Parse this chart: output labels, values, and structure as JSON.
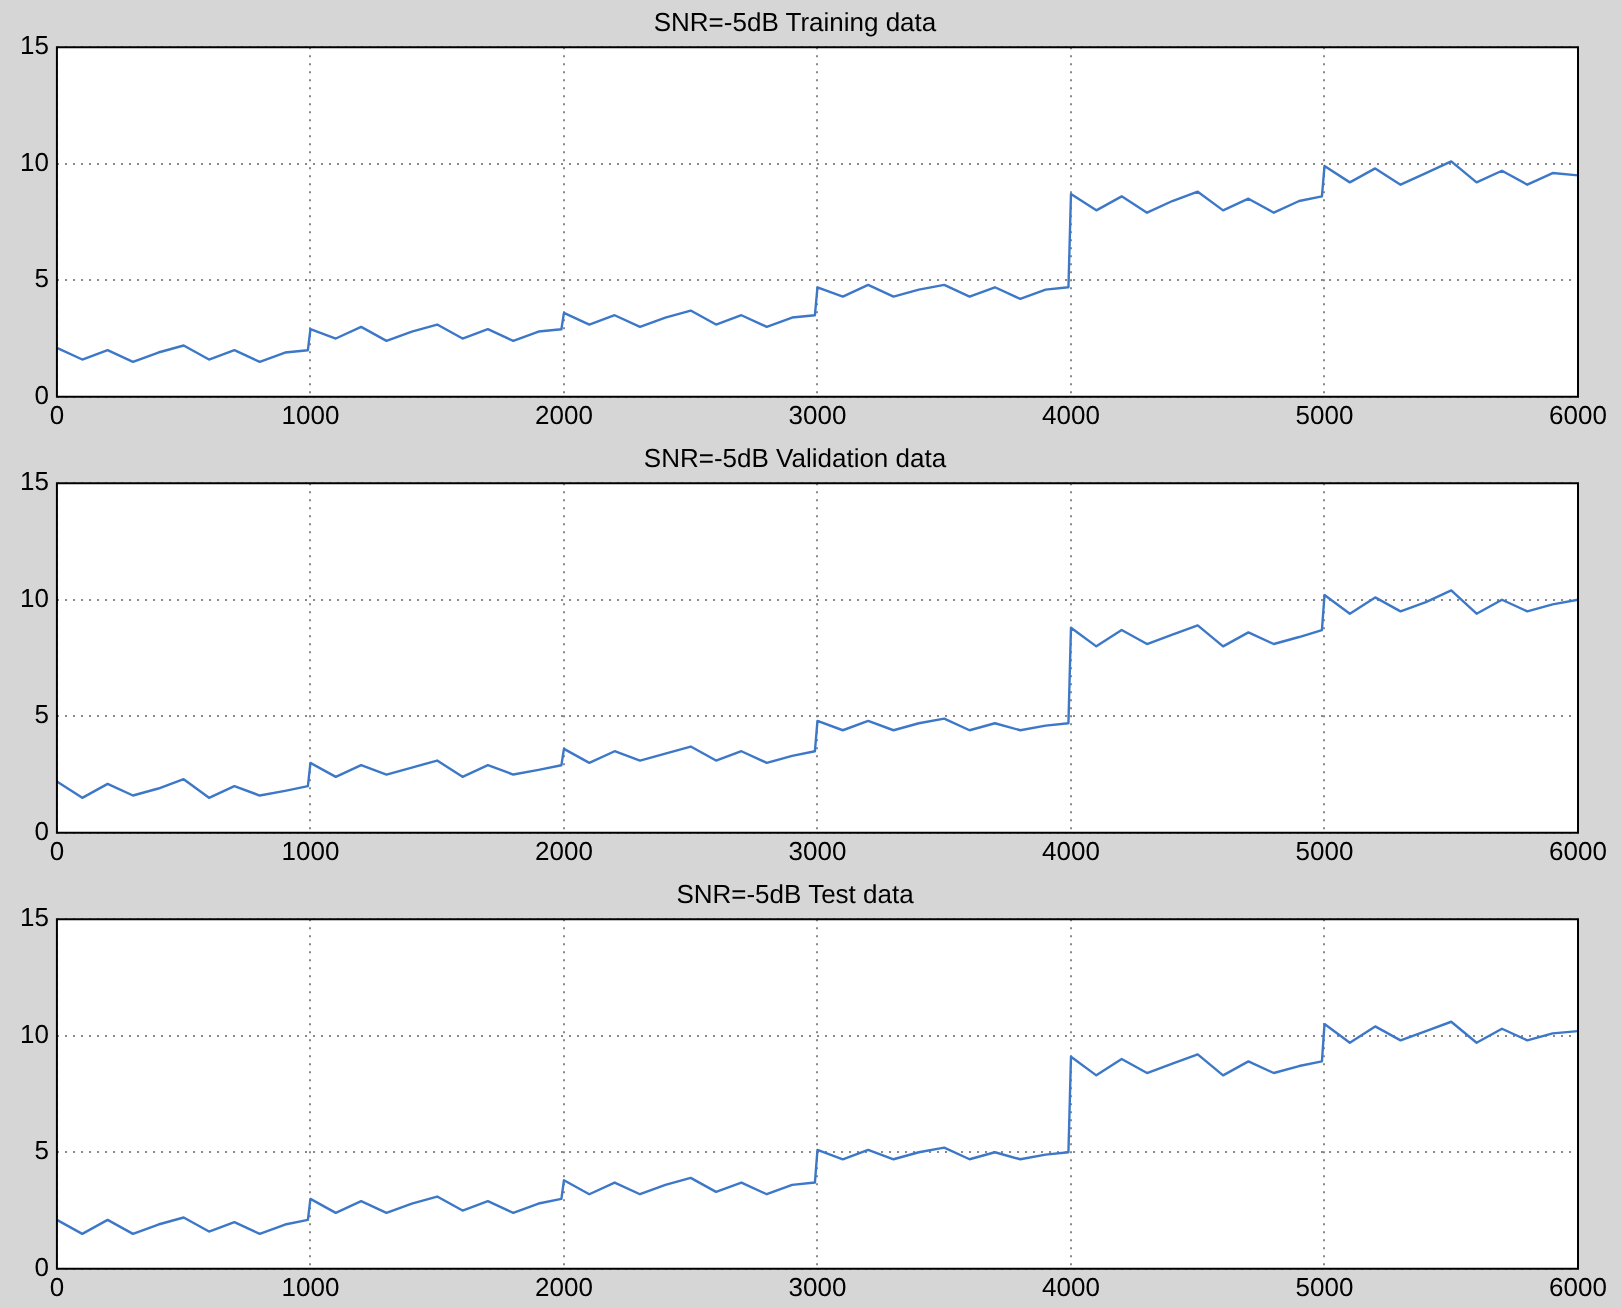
{
  "chart_data": [
    {
      "type": "line",
      "title": "SNR=-5dB Training data",
      "xlim": [
        0,
        6000
      ],
      "xticks": [
        0,
        1000,
        2000,
        3000,
        4000,
        5000,
        6000
      ],
      "ylim": [
        0,
        15
      ],
      "yticks": [
        0,
        5,
        10,
        15
      ],
      "grid": true,
      "x": [
        0,
        100,
        200,
        300,
        400,
        500,
        600,
        700,
        800,
        900,
        990,
        1000,
        1100,
        1200,
        1300,
        1400,
        1500,
        1600,
        1700,
        1800,
        1900,
        1990,
        2000,
        2100,
        2200,
        2300,
        2400,
        2500,
        2600,
        2700,
        2800,
        2900,
        2990,
        3000,
        3100,
        3200,
        3300,
        3400,
        3500,
        3600,
        3700,
        3800,
        3900,
        3990,
        4000,
        4100,
        4200,
        4300,
        4400,
        4500,
        4600,
        4700,
        4800,
        4900,
        4990,
        5000,
        5100,
        5200,
        5300,
        5400,
        5500,
        5600,
        5700,
        5800,
        5900,
        6000
      ],
      "series": [
        {
          "color": "#3d78c8",
          "values": [
            2.1,
            1.6,
            2.0,
            1.5,
            1.9,
            2.2,
            1.6,
            2.0,
            1.5,
            1.9,
            2.0,
            2.9,
            2.5,
            3.0,
            2.4,
            2.8,
            3.1,
            2.5,
            2.9,
            2.4,
            2.8,
            2.9,
            3.6,
            3.1,
            3.5,
            3.0,
            3.4,
            3.7,
            3.1,
            3.5,
            3.0,
            3.4,
            3.5,
            4.7,
            4.3,
            4.8,
            4.3,
            4.6,
            4.8,
            4.3,
            4.7,
            4.2,
            4.6,
            4.7,
            8.7,
            8.0,
            8.6,
            7.9,
            8.4,
            8.8,
            8.0,
            8.5,
            7.9,
            8.4,
            8.6,
            9.9,
            9.2,
            9.8,
            9.1,
            9.6,
            10.1,
            9.2,
            9.7,
            9.1,
            9.6,
            9.5
          ]
        }
      ]
    },
    {
      "type": "line",
      "title": "SNR=-5dB Validation data",
      "xlim": [
        0,
        6000
      ],
      "xticks": [
        0,
        1000,
        2000,
        3000,
        4000,
        5000,
        6000
      ],
      "ylim": [
        0,
        15
      ],
      "yticks": [
        0,
        5,
        10,
        15
      ],
      "grid": true,
      "x": [
        0,
        100,
        200,
        300,
        400,
        500,
        600,
        700,
        800,
        900,
        990,
        1000,
        1100,
        1200,
        1300,
        1400,
        1500,
        1600,
        1700,
        1800,
        1900,
        1990,
        2000,
        2100,
        2200,
        2300,
        2400,
        2500,
        2600,
        2700,
        2800,
        2900,
        2990,
        3000,
        3100,
        3200,
        3300,
        3400,
        3500,
        3600,
        3700,
        3800,
        3900,
        3990,
        4000,
        4100,
        4200,
        4300,
        4400,
        4500,
        4600,
        4700,
        4800,
        4900,
        4990,
        5000,
        5100,
        5200,
        5300,
        5400,
        5500,
        5600,
        5700,
        5800,
        5900,
        6000
      ],
      "series": [
        {
          "color": "#3d78c8",
          "values": [
            2.2,
            1.5,
            2.1,
            1.6,
            1.9,
            2.3,
            1.5,
            2.0,
            1.6,
            1.8,
            2.0,
            3.0,
            2.4,
            2.9,
            2.5,
            2.8,
            3.1,
            2.4,
            2.9,
            2.5,
            2.7,
            2.9,
            3.6,
            3.0,
            3.5,
            3.1,
            3.4,
            3.7,
            3.1,
            3.5,
            3.0,
            3.3,
            3.5,
            4.8,
            4.4,
            4.8,
            4.4,
            4.7,
            4.9,
            4.4,
            4.7,
            4.4,
            4.6,
            4.7,
            8.8,
            8.0,
            8.7,
            8.1,
            8.5,
            8.9,
            8.0,
            8.6,
            8.1,
            8.4,
            8.7,
            10.2,
            9.4,
            10.1,
            9.5,
            9.9,
            10.4,
            9.4,
            10.0,
            9.5,
            9.8,
            10.0
          ]
        }
      ]
    },
    {
      "type": "line",
      "title": "SNR=-5dB Test data",
      "xlim": [
        0,
        6000
      ],
      "xticks": [
        0,
        1000,
        2000,
        3000,
        4000,
        5000,
        6000
      ],
      "ylim": [
        0,
        15
      ],
      "yticks": [
        0,
        5,
        10,
        15
      ],
      "grid": true,
      "x": [
        0,
        100,
        200,
        300,
        400,
        500,
        600,
        700,
        800,
        900,
        990,
        1000,
        1100,
        1200,
        1300,
        1400,
        1500,
        1600,
        1700,
        1800,
        1900,
        1990,
        2000,
        2100,
        2200,
        2300,
        2400,
        2500,
        2600,
        2700,
        2800,
        2900,
        2990,
        3000,
        3100,
        3200,
        3300,
        3400,
        3500,
        3600,
        3700,
        3800,
        3900,
        3990,
        4000,
        4100,
        4200,
        4300,
        4400,
        4500,
        4600,
        4700,
        4800,
        4900,
        4990,
        5000,
        5100,
        5200,
        5300,
        5400,
        5500,
        5600,
        5700,
        5800,
        5900,
        6000
      ],
      "series": [
        {
          "color": "#3d78c8",
          "values": [
            2.1,
            1.5,
            2.1,
            1.5,
            1.9,
            2.2,
            1.6,
            2.0,
            1.5,
            1.9,
            2.1,
            3.0,
            2.4,
            2.9,
            2.4,
            2.8,
            3.1,
            2.5,
            2.9,
            2.4,
            2.8,
            3.0,
            3.8,
            3.2,
            3.7,
            3.2,
            3.6,
            3.9,
            3.3,
            3.7,
            3.2,
            3.6,
            3.7,
            5.1,
            4.7,
            5.1,
            4.7,
            5.0,
            5.2,
            4.7,
            5.0,
            4.7,
            4.9,
            5.0,
            9.1,
            8.3,
            9.0,
            8.4,
            8.8,
            9.2,
            8.3,
            8.9,
            8.4,
            8.7,
            8.9,
            10.5,
            9.7,
            10.4,
            9.8,
            10.2,
            10.6,
            9.7,
            10.3,
            9.8,
            10.1,
            10.2
          ]
        }
      ]
    }
  ]
}
